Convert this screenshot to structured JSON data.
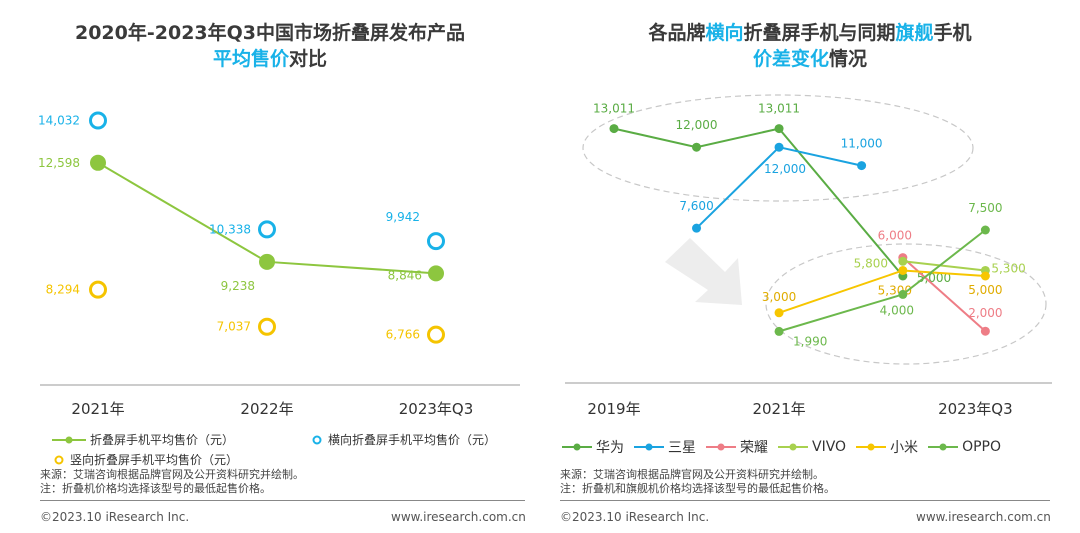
{
  "left": {
    "title_line1": "2020年-2023年Q3中国市场折叠屏发布产品",
    "title_line2_hl": "平均售价",
    "title_line2_rest": "对比",
    "legend": [
      "折叠屏手机平均售价（元）",
      "横向折叠屏手机平均售价（元）",
      "竖向折叠屏手机平均售价（元）"
    ],
    "source": "来源：艾瑞咨询根据品牌官网及公开资料研究并绘制。",
    "note": "注：折叠机价格均选择该型号的最低起售价格。",
    "copyright": "©2023.10 iResearch Inc.",
    "website": "www.iresearch.com.cn"
  },
  "right": {
    "title_p1": "各品牌",
    "title_hl1": "横向",
    "title_p2": "折叠屏手机与同期",
    "title_hl2": "旗舰",
    "title_p3": "手机",
    "title_line2_hl": "价差变化",
    "title_line2_rest": "情况",
    "source": "来源：艾瑞咨询根据品牌官网及公开资料研究并绘制。",
    "note": "注：折叠机和旗舰机价格均选择该型号的最低起售价格。",
    "copyright": "©2023.10 iResearch Inc.",
    "website": "www.iresearch.com.cn"
  },
  "colors": {
    "green": "#8dc63f",
    "blue": "#19b2e8",
    "yellow": "#f5c400",
    "huawei": "#5aac44",
    "samsung": "#1aa3e0",
    "honor": "#ee7d86",
    "vivo": "#a8d14f",
    "xiaomi": "#f7c600",
    "oppo": "#6cb84c"
  },
  "chart_data": [
    {
      "type": "line",
      "categories": [
        "2021年",
        "2022年",
        "2023年Q3"
      ],
      "series": [
        {
          "name": "折叠屏手机平均售价（元）",
          "values": [
            12598,
            9238,
            8846
          ],
          "labels": [
            "12,598",
            "9,238",
            "8,846"
          ],
          "style": "line-filled"
        },
        {
          "name": "横向折叠屏手机平均售价（元）",
          "values": [
            14032,
            10338,
            9942
          ],
          "labels": [
            "14,032",
            "10,338",
            "9,942"
          ],
          "style": "ring"
        },
        {
          "name": "竖向折叠屏手机平均售价（元）",
          "values": [
            8294,
            7037,
            6766
          ],
          "labels": [
            "8,294",
            "7,037",
            "6,766"
          ],
          "style": "ring"
        }
      ],
      "ylim": [
        5500,
        15000
      ]
    },
    {
      "type": "line",
      "categories": [
        "2019年",
        "2021年",
        "2023年Q3"
      ],
      "x_range": [
        2019,
        2023.75
      ],
      "series": [
        {
          "name": "华为",
          "x": [
            2019,
            2020,
            2021,
            2022.5
          ],
          "values": [
            13011,
            12000,
            13011,
            5000
          ],
          "labels": [
            "13,011",
            "12,000",
            "13,011",
            "5,000"
          ]
        },
        {
          "name": "三星",
          "x": [
            2020,
            2021,
            2022
          ],
          "values": [
            7600,
            12000,
            11000
          ],
          "labels": [
            "7,600",
            "12,000",
            "11,000"
          ]
        },
        {
          "name": "荣耀",
          "x": [
            2022.5,
            2023.5
          ],
          "values": [
            6000,
            2000
          ],
          "labels": [
            "6,000",
            "2,000"
          ]
        },
        {
          "name": "VIVO",
          "x": [
            2022.5,
            2023.5
          ],
          "values": [
            5800,
            5300
          ],
          "labels": [
            "5,800",
            "5,300"
          ]
        },
        {
          "name": "小米",
          "x": [
            2021,
            2022.5,
            2023.5
          ],
          "values": [
            3000,
            5300,
            5000
          ],
          "labels": [
            "3,000",
            "5,300",
            "5,000"
          ]
        },
        {
          "name": "OPPO",
          "x": [
            2021,
            2022.5,
            2023.5
          ],
          "values": [
            1990,
            4000,
            7500
          ],
          "labels": [
            "1,990",
            "4,000",
            "7,500"
          ]
        }
      ],
      "ylim": [
        0,
        15000
      ]
    }
  ]
}
